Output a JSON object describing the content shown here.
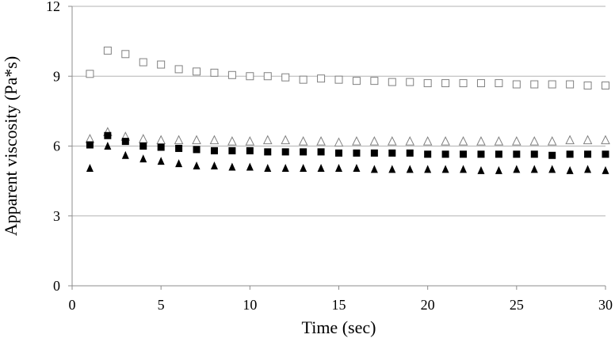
{
  "chart_data": {
    "type": "scatter",
    "title": "",
    "xlabel": "Time (sec)",
    "ylabel": "Apparent viscosity (Pa*s)",
    "xlim": [
      0,
      30
    ],
    "ylim": [
      0,
      12
    ],
    "xticks": [
      0,
      5,
      10,
      15,
      20,
      25,
      30
    ],
    "yticks": [
      0,
      3,
      6,
      9,
      12
    ],
    "grid": "horizontal",
    "legend": "none",
    "x": [
      1,
      2,
      3,
      4,
      5,
      6,
      7,
      8,
      9,
      10,
      11,
      12,
      13,
      14,
      15,
      16,
      17,
      18,
      19,
      20,
      21,
      22,
      23,
      24,
      25,
      26,
      27,
      28,
      29,
      30
    ],
    "series": [
      {
        "marker": "open-square",
        "color": "#808080",
        "values": [
          9.1,
          10.1,
          9.95,
          9.6,
          9.5,
          9.3,
          9.2,
          9.15,
          9.05,
          9.0,
          9.0,
          8.95,
          8.85,
          8.9,
          8.85,
          8.8,
          8.8,
          8.75,
          8.75,
          8.7,
          8.7,
          8.7,
          8.7,
          8.7,
          8.65,
          8.65,
          8.65,
          8.65,
          8.6,
          8.6
        ]
      },
      {
        "marker": "open-triangle",
        "color": "#808080",
        "values": [
          6.3,
          6.6,
          6.4,
          6.3,
          6.25,
          6.25,
          6.25,
          6.25,
          6.2,
          6.2,
          6.25,
          6.25,
          6.2,
          6.2,
          6.15,
          6.2,
          6.2,
          6.2,
          6.2,
          6.2,
          6.2,
          6.2,
          6.2,
          6.2,
          6.2,
          6.2,
          6.2,
          6.25,
          6.25,
          6.25
        ]
      },
      {
        "marker": "filled-square",
        "color": "#000000",
        "values": [
          6.05,
          6.45,
          6.2,
          6.0,
          5.95,
          5.9,
          5.85,
          5.8,
          5.8,
          5.8,
          5.75,
          5.75,
          5.75,
          5.75,
          5.7,
          5.7,
          5.7,
          5.7,
          5.7,
          5.65,
          5.65,
          5.65,
          5.65,
          5.65,
          5.65,
          5.65,
          5.6,
          5.65,
          5.65,
          5.65
        ]
      },
      {
        "marker": "filled-triangle",
        "color": "#000000",
        "values": [
          5.05,
          6.0,
          5.6,
          5.45,
          5.35,
          5.25,
          5.15,
          5.15,
          5.1,
          5.1,
          5.05,
          5.05,
          5.05,
          5.05,
          5.05,
          5.05,
          5.0,
          5.0,
          5.0,
          5.0,
          5.0,
          5.0,
          4.95,
          4.95,
          5.0,
          5.0,
          5.0,
          4.95,
          5.0,
          4.95
        ]
      }
    ]
  }
}
